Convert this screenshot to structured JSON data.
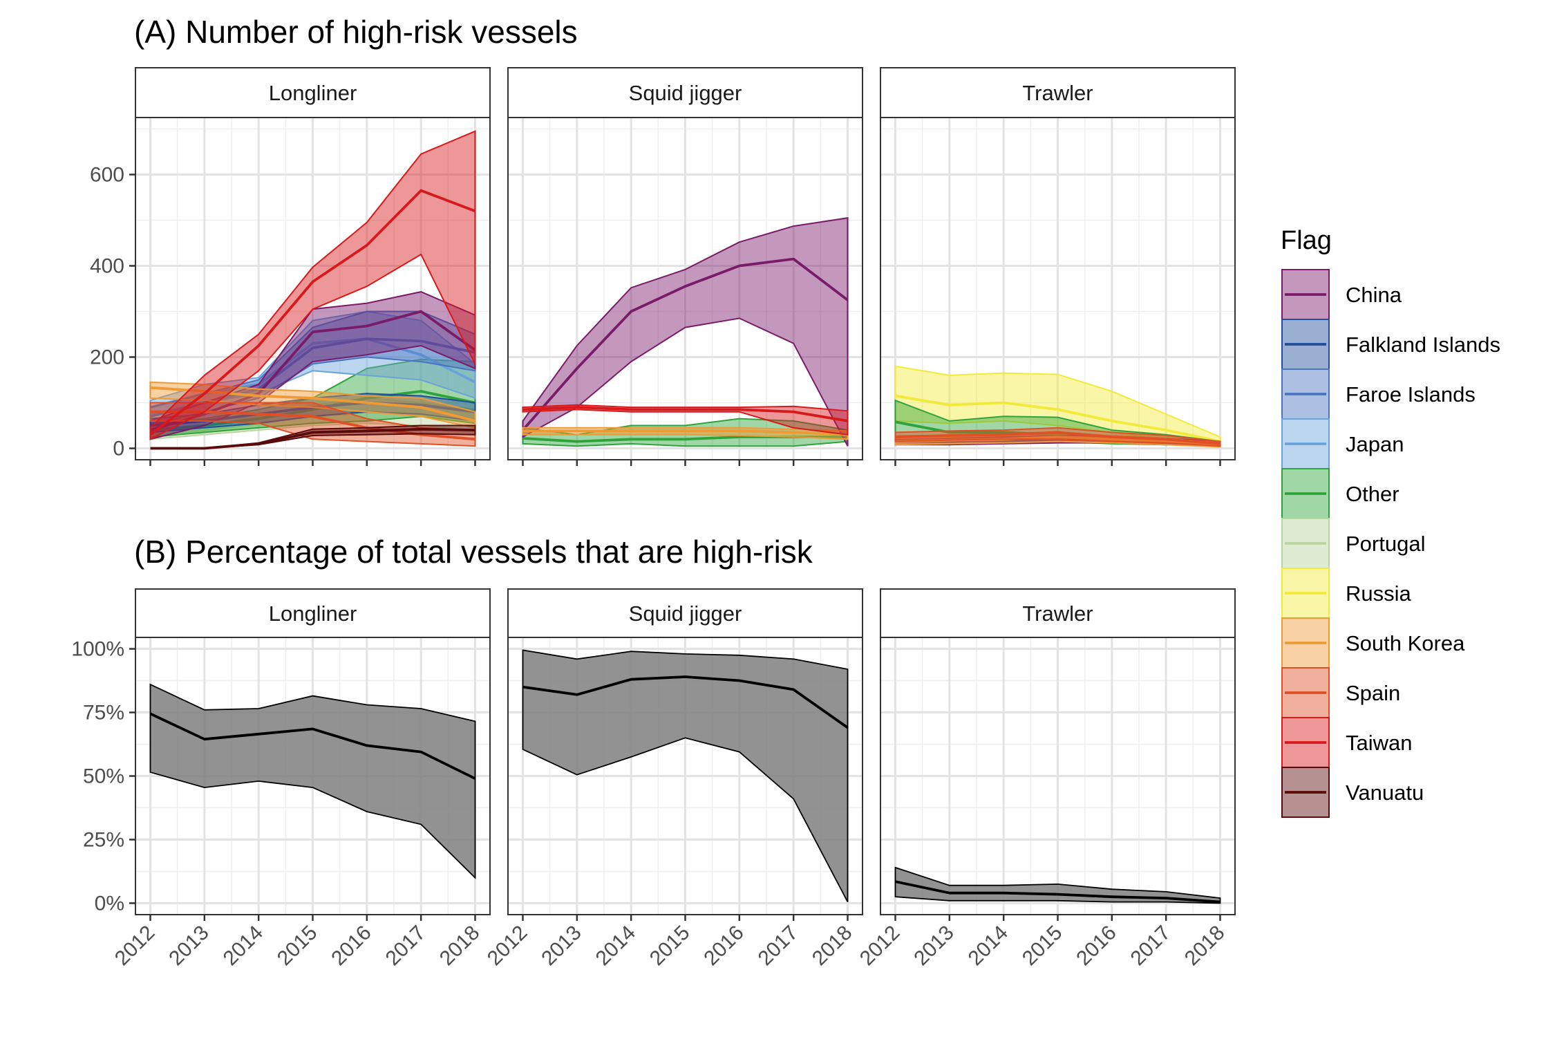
{
  "colors": {
    "China": "#7a1b6a",
    "Falkland Islands": "#1f4e9c",
    "Faroe Islands": "#4a74c0",
    "Japan": "#6aa3dc",
    "Other": "#2fa33b",
    "Portugal": "#b7d59e",
    "Russia": "#f2ea3b",
    "South Korea": "#ef9a35",
    "Spain": "#e04f25",
    "Taiwan": "#d7191c",
    "Vanuatu": "#5a0a0a",
    "Overall": "#000000"
  },
  "legend": {
    "title": "Flag",
    "items": [
      "China",
      "Falkland Islands",
      "Faroe Islands",
      "Japan",
      "Other",
      "Portugal",
      "Russia",
      "South Korea",
      "Spain",
      "Taiwan",
      "Vanuatu"
    ]
  },
  "chart_data": [
    {
      "type": "area",
      "title": "(A) Number of high-risk vessels",
      "facets": [
        "Longliner",
        "Squid jigger",
        "Trawler"
      ],
      "x": [
        2012,
        2013,
        2014,
        2015,
        2016,
        2017,
        2018
      ],
      "ylim": [
        -25,
        725
      ],
      "yticks": [
        0,
        200,
        400,
        600
      ],
      "grid": true,
      "legend_position": "right",
      "series": [
        {
          "facet": "Longliner",
          "name": "China",
          "values": [
            40,
            75,
            120,
            255,
            268,
            300,
            215
          ],
          "lower": [
            20,
            50,
            100,
            190,
            205,
            225,
            175
          ],
          "upper": [
            60,
            100,
            140,
            305,
            318,
            343,
            292
          ]
        },
        {
          "facet": "Longliner",
          "name": "Falkland Islands",
          "values": [
            50,
            60,
            75,
            90,
            100,
            95,
            80
          ],
          "lower": [
            35,
            45,
            55,
            70,
            80,
            75,
            60
          ],
          "upper": [
            65,
            75,
            95,
            110,
            120,
            115,
            100
          ]
        },
        {
          "facet": "Longliner",
          "name": "Faroe Islands",
          "values": [
            70,
            100,
            130,
            220,
            240,
            235,
            210
          ],
          "lower": [
            50,
            80,
            110,
            185,
            200,
            190,
            170
          ],
          "upper": [
            90,
            120,
            150,
            265,
            300,
            300,
            250
          ]
        },
        {
          "facet": "Longliner",
          "name": "Japan",
          "values": [
            90,
            120,
            140,
            230,
            240,
            205,
            145
          ],
          "lower": [
            75,
            100,
            120,
            170,
            160,
            150,
            110
          ],
          "upper": [
            105,
            140,
            155,
            280,
            300,
            280,
            185
          ]
        },
        {
          "facet": "Longliner",
          "name": "Other",
          "values": [
            40,
            50,
            65,
            85,
            110,
            125,
            100
          ],
          "lower": [
            25,
            35,
            45,
            55,
            60,
            70,
            55
          ],
          "upper": [
            55,
            65,
            85,
            110,
            175,
            195,
            190
          ]
        },
        {
          "facet": "Longliner",
          "name": "Portugal",
          "values": [
            30,
            40,
            55,
            70,
            80,
            75,
            60
          ],
          "lower": [
            20,
            30,
            40,
            50,
            55,
            50,
            40
          ],
          "upper": [
            40,
            50,
            70,
            95,
            110,
            100,
            85
          ]
        },
        {
          "facet": "Longliner",
          "name": "South Korea",
          "values": [
            133,
            125,
            115,
            110,
            100,
            90,
            60
          ],
          "lower": [
            110,
            105,
            95,
            90,
            80,
            70,
            45
          ],
          "upper": [
            145,
            140,
            130,
            125,
            115,
            110,
            80
          ]
        },
        {
          "facet": "Longliner",
          "name": "Spain",
          "values": [
            80,
            80,
            75,
            70,
            45,
            30,
            20
          ],
          "lower": [
            60,
            60,
            55,
            20,
            15,
            10,
            5
          ],
          "upper": [
            100,
            100,
            100,
            100,
            65,
            45,
            40
          ]
        },
        {
          "facet": "Longliner",
          "name": "Taiwan",
          "values": [
            30,
            120,
            225,
            365,
            445,
            565,
            520
          ],
          "lower": [
            20,
            80,
            170,
            305,
            355,
            425,
            185
          ],
          "upper": [
            45,
            160,
            250,
            397,
            495,
            645,
            695
          ]
        },
        {
          "facet": "Longliner",
          "name": "Vanuatu",
          "values": [
            0,
            0,
            10,
            35,
            38,
            42,
            40
          ],
          "lower": [
            0,
            0,
            8,
            28,
            30,
            32,
            30
          ],
          "upper": [
            0,
            0,
            12,
            42,
            45,
            50,
            50
          ]
        },
        {
          "facet": "Squid jigger",
          "name": "China",
          "values": [
            40,
            175,
            300,
            355,
            400,
            415,
            325
          ],
          "lower": [
            25,
            90,
            190,
            265,
            285,
            230,
            5
          ],
          "upper": [
            60,
            225,
            352,
            392,
            452,
            487,
            505
          ]
        },
        {
          "facet": "Squid jigger",
          "name": "Other",
          "values": [
            22,
            15,
            20,
            20,
            25,
            25,
            25
          ],
          "lower": [
            10,
            5,
            10,
            5,
            5,
            5,
            15
          ],
          "upper": [
            45,
            30,
            50,
            50,
            65,
            60,
            40
          ]
        },
        {
          "facet": "Squid jigger",
          "name": "South Korea",
          "values": [
            38,
            38,
            38,
            38,
            38,
            35,
            30
          ],
          "lower": [
            30,
            30,
            30,
            30,
            28,
            25,
            20
          ],
          "upper": [
            45,
            45,
            45,
            45,
            45,
            42,
            38
          ]
        },
        {
          "facet": "Squid jigger",
          "name": "Taiwan",
          "values": [
            85,
            90,
            85,
            85,
            85,
            80,
            60
          ],
          "lower": [
            80,
            85,
            80,
            80,
            80,
            45,
            30
          ],
          "upper": [
            90,
            95,
            90,
            90,
            90,
            92,
            82
          ]
        },
        {
          "facet": "Trawler",
          "name": "China",
          "values": [
            15,
            15,
            18,
            20,
            20,
            15,
            10
          ],
          "lower": [
            8,
            8,
            10,
            12,
            12,
            8,
            5
          ],
          "upper": [
            22,
            22,
            25,
            28,
            28,
            22,
            15
          ]
        },
        {
          "facet": "Trawler",
          "name": "Falkland Islands",
          "values": [
            20,
            20,
            20,
            20,
            18,
            15,
            10
          ],
          "lower": [
            15,
            15,
            15,
            15,
            12,
            10,
            5
          ],
          "upper": [
            25,
            25,
            25,
            25,
            22,
            20,
            15
          ]
        },
        {
          "facet": "Trawler",
          "name": "Other",
          "values": [
            58,
            35,
            35,
            30,
            20,
            15,
            10
          ],
          "lower": [
            20,
            20,
            20,
            15,
            10,
            8,
            5
          ],
          "upper": [
            105,
            60,
            70,
            68,
            40,
            30,
            15
          ]
        },
        {
          "facet": "Trawler",
          "name": "Portugal",
          "values": [
            20,
            20,
            22,
            22,
            20,
            15,
            10
          ],
          "lower": [
            12,
            12,
            15,
            15,
            12,
            10,
            5
          ],
          "upper": [
            28,
            28,
            30,
            30,
            28,
            22,
            15
          ]
        },
        {
          "facet": "Trawler",
          "name": "Russia",
          "values": [
            115,
            95,
            100,
            85,
            60,
            40,
            15
          ],
          "lower": [
            60,
            55,
            60,
            50,
            35,
            20,
            5
          ],
          "upper": [
            180,
            160,
            165,
            162,
            125,
            75,
            25
          ]
        },
        {
          "facet": "Trawler",
          "name": "South Korea",
          "values": [
            15,
            18,
            20,
            25,
            20,
            15,
            8
          ],
          "lower": [
            8,
            10,
            12,
            15,
            12,
            8,
            3
          ],
          "upper": [
            22,
            25,
            28,
            35,
            28,
            22,
            12
          ]
        },
        {
          "facet": "Trawler",
          "name": "Spain",
          "values": [
            25,
            28,
            30,
            35,
            25,
            20,
            10
          ],
          "lower": [
            15,
            18,
            20,
            20,
            15,
            12,
            5
          ],
          "upper": [
            35,
            38,
            40,
            45,
            35,
            28,
            15
          ]
        }
      ]
    },
    {
      "type": "area",
      "title": "(B) Percentage of total vessels that are high-risk",
      "facets": [
        "Longliner",
        "Squid jigger",
        "Trawler"
      ],
      "x": [
        2012,
        2013,
        2014,
        2015,
        2016,
        2017,
        2018
      ],
      "ylim": [
        -4.5,
        104.5
      ],
      "yticks": [
        0,
        25,
        50,
        75,
        100
      ],
      "ytick_labels": [
        "0%",
        "25%",
        "50%",
        "75%",
        "100%"
      ],
      "xtick_labels": [
        "2012",
        "2013",
        "2014",
        "2015",
        "2016",
        "2017",
        "2018"
      ],
      "grid": true,
      "series": [
        {
          "facet": "Longliner",
          "values": [
            74.5,
            64.5,
            66.5,
            68.5,
            62,
            59.5,
            49
          ],
          "lower": [
            51.5,
            45.5,
            48,
            45.5,
            36,
            31,
            10
          ],
          "upper": [
            86,
            76,
            76.5,
            81.5,
            78,
            76.5,
            71.5
          ]
        },
        {
          "facet": "Squid jigger",
          "values": [
            85,
            82,
            88,
            89,
            87.5,
            84,
            69
          ],
          "lower": [
            60.5,
            50.5,
            57.5,
            65,
            59.5,
            41,
            0.5
          ],
          "upper": [
            99.5,
            96,
            99,
            98,
            97.5,
            96,
            92
          ]
        },
        {
          "facet": "Trawler",
          "values": [
            8.5,
            4,
            4,
            3.5,
            2.5,
            2,
            0.5
          ],
          "lower": [
            2.5,
            1,
            1,
            1,
            0.5,
            0.5,
            0
          ],
          "upper": [
            14,
            7,
            7,
            7.5,
            5.5,
            4.5,
            2
          ]
        }
      ]
    }
  ]
}
